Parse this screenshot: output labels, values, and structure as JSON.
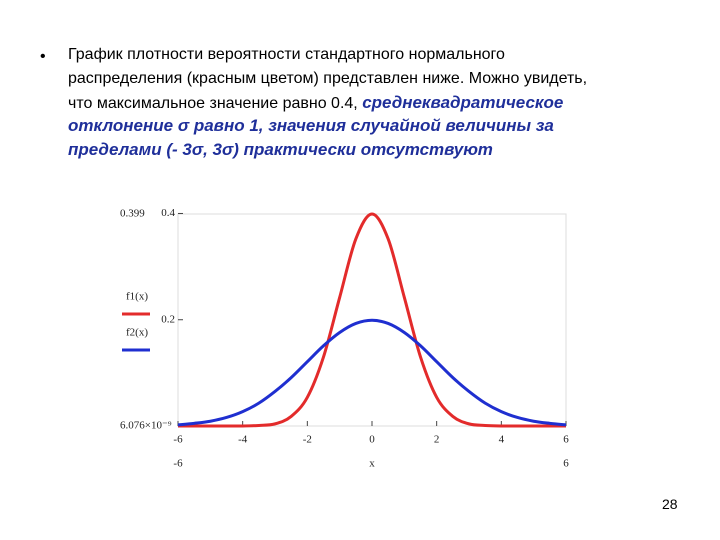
{
  "slide": {
    "bullet": "•",
    "plain_lines": [
      "График плотности вероятности стандартного нормального",
      "распределения (красным цветом) представлен ниже. Можно увидеть,",
      "что максимальное значение равно 0.4,"
    ],
    "emphasis_lines": [
      "среднеквадратическое",
      "отклонение σ равно 1, значения случайной величины за",
      "пределами (- 3σ, 3σ) практически отсутствуют"
    ],
    "page_number": "28"
  },
  "chart_data": {
    "type": "line",
    "x": [
      -6,
      -5.5,
      -5,
      -4.5,
      -4,
      -3.5,
      -3,
      -2.5,
      -2,
      -1.5,
      -1,
      -0.5,
      0,
      0.5,
      1,
      1.5,
      2,
      2.5,
      3,
      3.5,
      4,
      4.5,
      5,
      5.5,
      6
    ],
    "series": [
      {
        "name": "f1(x)",
        "color": "#e32b2b",
        "values": [
          0,
          0,
          0,
          0,
          0,
          0.001,
          0.004,
          0.018,
          0.054,
          0.13,
          0.242,
          0.352,
          0.399,
          0.352,
          0.242,
          0.13,
          0.054,
          0.018,
          0.004,
          0.001,
          0,
          0,
          0,
          0,
          0
        ]
      },
      {
        "name": "f2(x)",
        "color": "#1f2fd0",
        "values": [
          0.002,
          0.005,
          0.009,
          0.016,
          0.027,
          0.043,
          0.065,
          0.091,
          0.121,
          0.151,
          0.176,
          0.193,
          0.199,
          0.193,
          0.176,
          0.151,
          0.121,
          0.091,
          0.065,
          0.043,
          0.027,
          0.016,
          0.009,
          0.005,
          0.002
        ]
      }
    ],
    "x_label": "x",
    "xlim": [
      -6,
      6
    ],
    "xlim_labels": [
      {
        "value": -6,
        "label": "-6"
      },
      {
        "value": 6,
        "label": "6"
      }
    ],
    "xticks": [
      -6,
      -4,
      -2,
      0,
      2,
      4,
      6
    ],
    "ylim": [
      6.076e-09,
      0.399
    ],
    "ylim_labels": [
      {
        "value": 0.399,
        "label": "0.399"
      },
      {
        "value": 6.076e-09,
        "label": "6.076×10⁻⁹"
      }
    ],
    "yticks": [
      0.2,
      0.4
    ],
    "legend": "left"
  }
}
